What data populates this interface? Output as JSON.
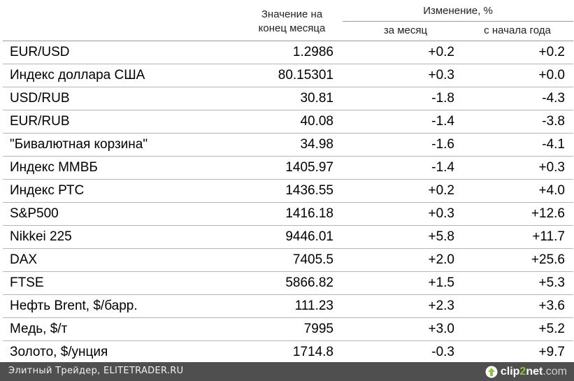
{
  "header": {
    "value_line1": "Значение на",
    "value_line2": "конец месяца",
    "change": "Изменение, %",
    "month": "за месяц",
    "ytd": "с начала года"
  },
  "rows": [
    {
      "name": "EUR/USD",
      "value": "1.2986",
      "month": "+0.2",
      "ytd": "+0.2"
    },
    {
      "name": "Индекс доллара США",
      "value": "80.15301",
      "month": "+0.3",
      "ytd": "+0.0"
    },
    {
      "name": "USD/RUB",
      "value": "30.81",
      "month": "-1.8",
      "ytd": "-4.3"
    },
    {
      "name": "EUR/RUB",
      "value": "40.08",
      "month": "-1.4",
      "ytd": "-3.8"
    },
    {
      "name": "\"Бивалютная корзина\"",
      "value": "34.98",
      "month": "-1.6",
      "ytd": "-4.1"
    },
    {
      "name": "Индекс ММВБ",
      "value": "1405.97",
      "month": "-1.4",
      "ytd": "+0.3"
    },
    {
      "name": "Индекс РТС",
      "value": "1436.55",
      "month": "+0.2",
      "ytd": "+4.0"
    },
    {
      "name": "S&P500",
      "value": "1416.18",
      "month": "+0.3",
      "ytd": "+12.6"
    },
    {
      "name": "Nikkei 225",
      "value": "9446.01",
      "month": "+5.8",
      "ytd": "+11.7"
    },
    {
      "name": "DAX",
      "value": "7405.5",
      "month": "+2.0",
      "ytd": "+25.6"
    },
    {
      "name": "FTSE",
      "value": "5866.82",
      "month": "+1.5",
      "ytd": "+5.3"
    },
    {
      "name": "Нефть Brent, $/барр.",
      "value": "111.23",
      "month": "+2.3",
      "ytd": "+3.6"
    },
    {
      "name": "Медь, $/т",
      "value": "7995",
      "month": "+3.0",
      "ytd": "+5.2"
    },
    {
      "name": "Золото, $/унция",
      "value": "1714.8",
      "month": "-0.3",
      "ytd": "+9.7"
    }
  ],
  "footer": {
    "text": "Элитный Трейдер, ELITETRADER.RU",
    "brand_a": "clip",
    "brand_b": "2",
    "brand_c": "net",
    "brand_d": ".com",
    "brand_icon": "clip2net-arrow-icon",
    "brand_accent_color": "#8cc63f"
  }
}
